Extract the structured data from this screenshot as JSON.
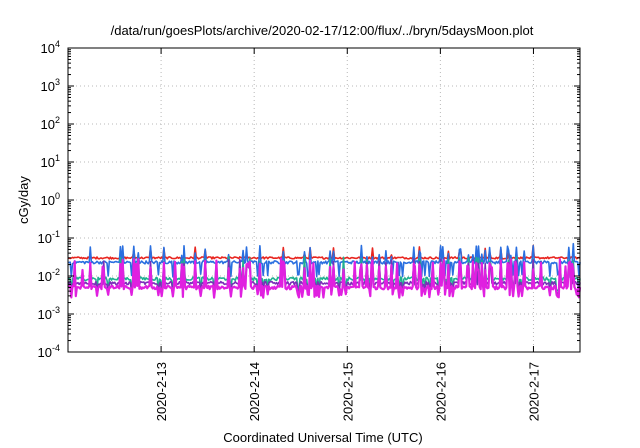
{
  "chart_data": {
    "type": "line",
    "title": "/data/run/goesPlots/archive/2020-02-17/12:00/flux/../bryn/5daysMoon.plot",
    "xlabel": "Coordinated Universal Time (UTC)",
    "ylabel": "cGy/day",
    "yscale": "log",
    "ylim": [
      0.0001,
      10000
    ],
    "xlim": [
      "2020-02-12T00:00",
      "2020-02-17T12:00"
    ],
    "grid": true,
    "y_ticks": [
      {
        "base": "10",
        "exp": "-4"
      },
      {
        "base": "10",
        "exp": "-3"
      },
      {
        "base": "10",
        "exp": "-2"
      },
      {
        "base": "10",
        "exp": "-1"
      },
      {
        "base": "10",
        "exp": "0"
      },
      {
        "base": "10",
        "exp": "1"
      },
      {
        "base": "10",
        "exp": "2"
      },
      {
        "base": "10",
        "exp": "3"
      },
      {
        "base": "10",
        "exp": "4"
      }
    ],
    "x_ticks": [
      {
        "label": "2020-2-13",
        "t": "2020-02-13T00:00"
      },
      {
        "label": "2020-2-14",
        "t": "2020-02-14T00:00"
      },
      {
        "label": "2020-2-15",
        "t": "2020-02-15T00:00"
      },
      {
        "label": "2020-2-16",
        "t": "2020-02-16T00:00"
      },
      {
        "label": "2020-2-17",
        "t": "2020-02-17T00:00"
      }
    ],
    "series": [
      {
        "color": "#e8251f",
        "base": 0.03,
        "noise": 0.12,
        "spike_prob": 0.06,
        "spike_mult": 1.7,
        "dip_prob": 0.0,
        "dip_mult": 1.0
      },
      {
        "color": "#2a6fe0",
        "base": 0.023,
        "noise": 0.18,
        "spike_prob": 0.12,
        "spike_mult": 2.4,
        "dip_prob": 0.08,
        "dip_mult": 0.45
      },
      {
        "color": "#20b090",
        "base": 0.0085,
        "noise": 0.2,
        "spike_prob": 0.14,
        "spike_mult": 3.0,
        "dip_prob": 0.1,
        "dip_mult": 0.5
      },
      {
        "color": "#7a2fb8",
        "base": 0.0065,
        "noise": 0.2,
        "spike_prob": 0.16,
        "spike_mult": 3.4,
        "dip_prob": 0.1,
        "dip_mult": 0.55
      },
      {
        "color": "#e020e0",
        "base": 0.005,
        "noise": 0.22,
        "spike_prob": 0.2,
        "spike_mult": 4.5,
        "dip_prob": 0.12,
        "dip_mult": 0.6
      }
    ]
  }
}
